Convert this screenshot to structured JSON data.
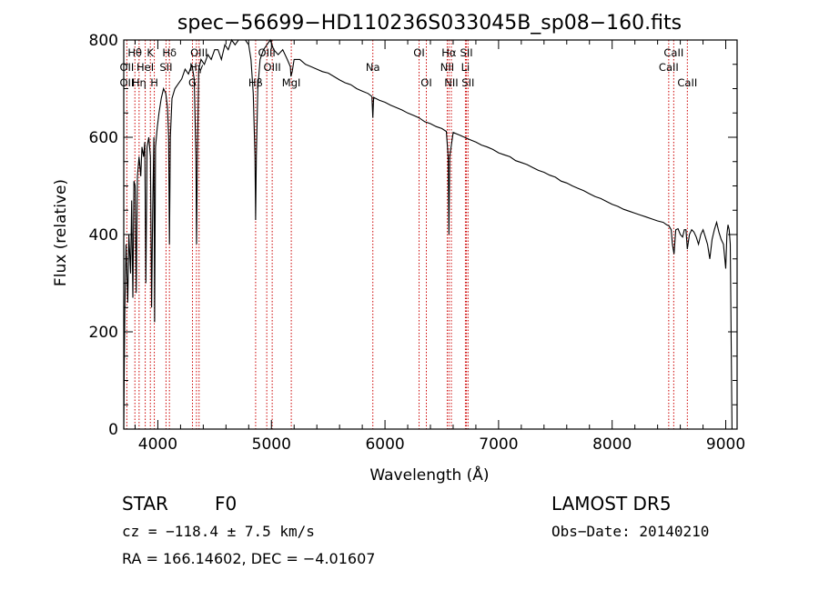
{
  "chart_data": {
    "type": "line",
    "title": "spec−56699−HD110236S033045B_sp08−160.fits",
    "xlabel": "Wavelength (Å)",
    "ylabel": "Flux (relative)",
    "xlim": [
      3700,
      9100
    ],
    "ylim": [
      0,
      800
    ],
    "x_ticks": [
      4000,
      5000,
      6000,
      7000,
      8000,
      9000
    ],
    "y_ticks": [
      0,
      200,
      400,
      600,
      800
    ],
    "grid": false,
    "series": [
      {
        "color": "#000000",
        "points": [
          [
            3700,
            0
          ],
          [
            3705,
            140
          ],
          [
            3710,
            250
          ],
          [
            3720,
            380
          ],
          [
            3735,
            260
          ],
          [
            3745,
            400
          ],
          [
            3760,
            320
          ],
          [
            3770,
            470
          ],
          [
            3780,
            270
          ],
          [
            3790,
            510
          ],
          [
            3800,
            500
          ],
          [
            3810,
            280
          ],
          [
            3820,
            520
          ],
          [
            3835,
            560
          ],
          [
            3850,
            520
          ],
          [
            3860,
            580
          ],
          [
            3875,
            560
          ],
          [
            3885,
            590
          ],
          [
            3895,
            300
          ],
          [
            3905,
            580
          ],
          [
            3920,
            600
          ],
          [
            3935,
            560
          ],
          [
            3945,
            250
          ],
          [
            3955,
            450
          ],
          [
            3965,
            600
          ],
          [
            3972,
            220
          ],
          [
            3980,
            580
          ],
          [
            3995,
            620
          ],
          [
            4010,
            650
          ],
          [
            4030,
            680
          ],
          [
            4050,
            700
          ],
          [
            4070,
            690
          ],
          [
            4085,
            660
          ],
          [
            4095,
            600
          ],
          [
            4102,
            380
          ],
          [
            4110,
            600
          ],
          [
            4125,
            680
          ],
          [
            4150,
            700
          ],
          [
            4180,
            710
          ],
          [
            4210,
            720
          ],
          [
            4240,
            740
          ],
          [
            4270,
            730
          ],
          [
            4300,
            750
          ],
          [
            4320,
            720
          ],
          [
            4335,
            560
          ],
          [
            4341,
            380
          ],
          [
            4348,
            560
          ],
          [
            4360,
            740
          ],
          [
            4380,
            760
          ],
          [
            4410,
            750
          ],
          [
            4440,
            770
          ],
          [
            4470,
            760
          ],
          [
            4500,
            780
          ],
          [
            4530,
            780
          ],
          [
            4560,
            760
          ],
          [
            4590,
            790
          ],
          [
            4620,
            780
          ],
          [
            4650,
            800
          ],
          [
            4680,
            790
          ],
          [
            4710,
            800
          ],
          [
            4740,
            810
          ],
          [
            4770,
            800
          ],
          [
            4800,
            790
          ],
          [
            4820,
            760
          ],
          [
            4840,
            690
          ],
          [
            4855,
            560
          ],
          [
            4861,
            430
          ],
          [
            4867,
            560
          ],
          [
            4880,
            700
          ],
          [
            4900,
            760
          ],
          [
            4930,
            780
          ],
          [
            4960,
            790
          ],
          [
            4990,
            800
          ],
          [
            5020,
            780
          ],
          [
            5060,
            770
          ],
          [
            5100,
            780
          ],
          [
            5140,
            760
          ],
          [
            5167,
            745
          ],
          [
            5172,
            725
          ],
          [
            5183,
            735
          ],
          [
            5200,
            760
          ],
          [
            5250,
            760
          ],
          [
            5300,
            750
          ],
          [
            5350,
            745
          ],
          [
            5400,
            740
          ],
          [
            5450,
            735
          ],
          [
            5500,
            732
          ],
          [
            5550,
            725
          ],
          [
            5600,
            718
          ],
          [
            5650,
            712
          ],
          [
            5700,
            708
          ],
          [
            5750,
            700
          ],
          [
            5800,
            695
          ],
          [
            5850,
            690
          ],
          [
            5885,
            684
          ],
          [
            5893,
            640
          ],
          [
            5900,
            682
          ],
          [
            5950,
            676
          ],
          [
            6000,
            672
          ],
          [
            6050,
            666
          ],
          [
            6100,
            661
          ],
          [
            6150,
            656
          ],
          [
            6200,
            650
          ],
          [
            6250,
            645
          ],
          [
            6300,
            640
          ],
          [
            6350,
            632
          ],
          [
            6400,
            628
          ],
          [
            6450,
            622
          ],
          [
            6500,
            618
          ],
          [
            6540,
            612
          ],
          [
            6556,
            560
          ],
          [
            6563,
            400
          ],
          [
            6570,
            560
          ],
          [
            6600,
            610
          ],
          [
            6650,
            605
          ],
          [
            6700,
            600
          ],
          [
            6750,
            595
          ],
          [
            6800,
            590
          ],
          [
            6850,
            584
          ],
          [
            6900,
            580
          ],
          [
            6950,
            575
          ],
          [
            7000,
            568
          ],
          [
            7050,
            564
          ],
          [
            7100,
            560
          ],
          [
            7150,
            552
          ],
          [
            7200,
            548
          ],
          [
            7250,
            544
          ],
          [
            7300,
            538
          ],
          [
            7350,
            532
          ],
          [
            7400,
            528
          ],
          [
            7450,
            522
          ],
          [
            7500,
            518
          ],
          [
            7550,
            510
          ],
          [
            7600,
            506
          ],
          [
            7650,
            500
          ],
          [
            7700,
            495
          ],
          [
            7750,
            490
          ],
          [
            7800,
            484
          ],
          [
            7850,
            478
          ],
          [
            7900,
            474
          ],
          [
            7950,
            468
          ],
          [
            8000,
            462
          ],
          [
            8050,
            458
          ],
          [
            8100,
            452
          ],
          [
            8150,
            448
          ],
          [
            8200,
            444
          ],
          [
            8250,
            440
          ],
          [
            8300,
            436
          ],
          [
            8350,
            432
          ],
          [
            8400,
            428
          ],
          [
            8450,
            425
          ],
          [
            8480,
            420
          ],
          [
            8500,
            418
          ],
          [
            8520,
            410
          ],
          [
            8530,
            380
          ],
          [
            8545,
            360
          ],
          [
            8560,
            410
          ],
          [
            8580,
            412
          ],
          [
            8600,
            400
          ],
          [
            8620,
            395
          ],
          [
            8635,
            410
          ],
          [
            8650,
            410
          ],
          [
            8662,
            370
          ],
          [
            8680,
            400
          ],
          [
            8700,
            410
          ],
          [
            8720,
            405
          ],
          [
            8740,
            395
          ],
          [
            8760,
            380
          ],
          [
            8780,
            400
          ],
          [
            8800,
            410
          ],
          [
            8820,
            395
          ],
          [
            8840,
            380
          ],
          [
            8860,
            350
          ],
          [
            8880,
            390
          ],
          [
            8900,
            410
          ],
          [
            8920,
            425
          ],
          [
            8940,
            405
          ],
          [
            8960,
            390
          ],
          [
            8980,
            380
          ],
          [
            9000,
            330
          ],
          [
            9010,
            400
          ],
          [
            9020,
            420
          ],
          [
            9030,
            410
          ],
          [
            9040,
            380
          ],
          [
            9048,
            180
          ],
          [
            9055,
            0
          ]
        ]
      }
    ],
    "emission_lines": [
      {
        "label": "Hθ",
        "wavelength": 3798,
        "row": 1
      },
      {
        "label": "K",
        "wavelength": 3934,
        "row": 1
      },
      {
        "label": "Hδ",
        "wavelength": 4102,
        "row": 1
      },
      {
        "label": "OII",
        "wavelength": 3727,
        "row": 2
      },
      {
        "label": "HeI",
        "wavelength": 3889,
        "row": 2
      },
      {
        "label": "SII",
        "wavelength": 4072,
        "row": 2
      },
      {
        "label": "OII",
        "wavelength": 3727,
        "row": 3
      },
      {
        "label": "Hη",
        "wavelength": 3835,
        "row": 3
      },
      {
        "label": "H",
        "wavelength": 3969,
        "row": 3
      },
      {
        "label": "OIII",
        "wavelength": 4363,
        "row": 1
      },
      {
        "label": "Hγ",
        "wavelength": 4340,
        "row": 2
      },
      {
        "label": "G",
        "wavelength": 4305,
        "row": 3
      },
      {
        "label": "Hβ",
        "wavelength": 4861,
        "row": 3
      },
      {
        "label": "OIII",
        "wavelength": 4959,
        "row": 1
      },
      {
        "label": "OIII",
        "wavelength": 5007,
        "row": 2
      },
      {
        "label": "MgI",
        "wavelength": 5175,
        "row": 3
      },
      {
        "label": "Na",
        "wavelength": 5893,
        "row": 2
      },
      {
        "label": "OI",
        "wavelength": 6300,
        "row": 1
      },
      {
        "label": "OI",
        "wavelength": 6364,
        "row": 3
      },
      {
        "label": "Hα",
        "wavelength": 6563,
        "row": 1
      },
      {
        "label": "NII",
        "wavelength": 6548,
        "row": 2
      },
      {
        "label": "NII",
        "wavelength": 6584,
        "row": 3
      },
      {
        "label": "SII",
        "wavelength": 6717,
        "row": 1
      },
      {
        "label": "Li",
        "wavelength": 6708,
        "row": 2
      },
      {
        "label": "SII",
        "wavelength": 6731,
        "row": 3
      },
      {
        "label": "CaII",
        "wavelength": 8542,
        "row": 1
      },
      {
        "label": "CaII",
        "wavelength": 8498,
        "row": 2
      },
      {
        "label": "CaII",
        "wavelength": 8662,
        "row": 3
      }
    ],
    "line_marker_color": "#cc0000"
  },
  "info": {
    "object_class": "STAR",
    "subclass": "F0",
    "survey": "LAMOST DR5",
    "redshift": "cz = −118.4 ± 7.5 km/s",
    "obs_date": "Obs−Date: 20140210",
    "coordinates": "RA = 166.14602, DEC =  −4.01607"
  }
}
